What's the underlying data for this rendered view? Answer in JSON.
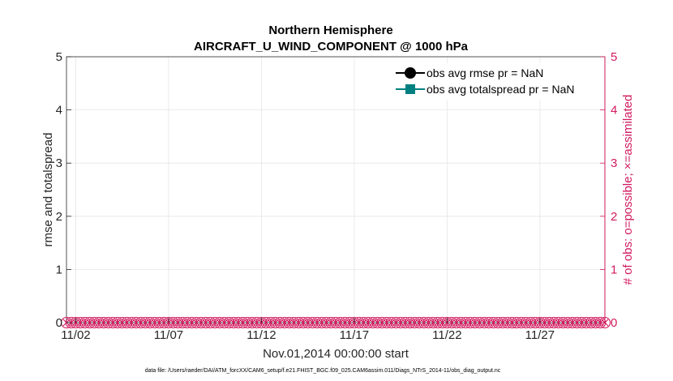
{
  "chart_data": {
    "type": "line",
    "title": "Northern Hemisphere",
    "subtitle": "AIRCRAFT_U_WIND_COMPONENT @ 1000 hPa",
    "xlabel": "Nov.01,2014 00:00:00 start",
    "ylabel": "rmse and totalspread",
    "ylabel_right": "# of obs: o=possible; ×=assimilated",
    "x_tick_labels": [
      "11/02",
      "11/07",
      "11/12",
      "11/17",
      "11/22",
      "11/27"
    ],
    "x_tick_days": [
      2,
      7,
      12,
      17,
      22,
      27
    ],
    "xlim": [
      1.5,
      30.5
    ],
    "ylim": [
      0,
      5
    ],
    "ylim_right": [
      0,
      5
    ],
    "y_ticks": [
      0,
      1,
      2,
      3,
      4,
      5
    ],
    "y_ticks_right": [
      0,
      1,
      2,
      3,
      4,
      5
    ],
    "grid": true,
    "legend_placement": "top-right",
    "series": [
      {
        "name": "obs avg rmse pr = NaN",
        "color": "#000000",
        "marker": "circle",
        "values": []
      },
      {
        "name": "obs avg totalspread pr = NaN",
        "color": "#008080",
        "marker": "square",
        "values": []
      }
    ],
    "obs_counts": {
      "color": "#d11a5e",
      "x_start": 1.5,
      "x_end": 30.5,
      "x_step": 0.25,
      "possible": 0,
      "assimilated": 0
    },
    "footnote": "data file: /Users/raeder/DAI/ATM_forcXX/CAM6_setup/f.e21.FHIST_BGC.f09_025.CAM6assim.011/Diags_NTrS_2014-11/obs_diag_output.nc"
  }
}
